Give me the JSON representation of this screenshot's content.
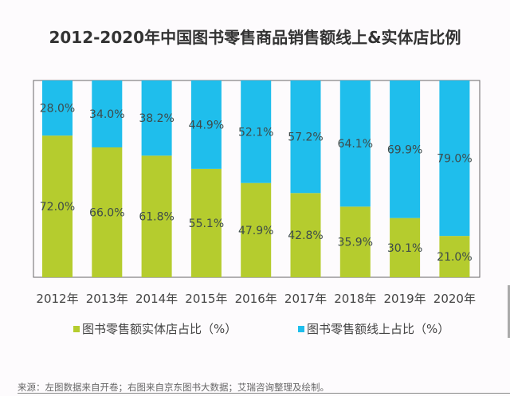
{
  "chart_data": {
    "type": "bar",
    "stacked": true,
    "normalized": true,
    "title": "2012-2020年中国图书零售商品销售额线上&实体店比例",
    "xlabel": "",
    "ylabel": "",
    "ylim": [
      0,
      100
    ],
    "grid": false,
    "legend_position": "bottom",
    "categories": [
      "2012年",
      "2013年",
      "2014年",
      "2015年",
      "2016年",
      "2017年",
      "2018年",
      "2019年",
      "2020年"
    ],
    "series": [
      {
        "name": "图书零售额实体店占比（%）",
        "color": "#b5cc2e",
        "values": [
          72.0,
          66.0,
          61.8,
          55.1,
          47.9,
          42.8,
          35.9,
          30.1,
          21.0
        ],
        "labels": [
          "72.0%",
          "66.0%",
          "61.8%",
          "55.1%",
          "47.9%",
          "42.8%",
          "35.9%",
          "30.1%",
          "21.0%"
        ]
      },
      {
        "name": "图书零售额线上占比（%）",
        "color": "#1fbeec",
        "values": [
          28.0,
          34.0,
          38.2,
          44.9,
          52.1,
          57.2,
          64.1,
          69.9,
          79.0
        ],
        "labels": [
          "28.0%",
          "34.0%",
          "38.2%",
          "44.9%",
          "52.1%",
          "57.2%",
          "64.1%",
          "69.9%",
          "79.0%"
        ]
      }
    ]
  },
  "legend": [
    {
      "label": "图书零售额实体店占比（%）",
      "color": "#b5cc2e"
    },
    {
      "label": "图书零售额线上占比（%）",
      "color": "#1fbeec"
    }
  ],
  "source": "来源：左图数据来自开卷；右图来自京东图书大数据；艾瑞咨询整理及绘制。"
}
